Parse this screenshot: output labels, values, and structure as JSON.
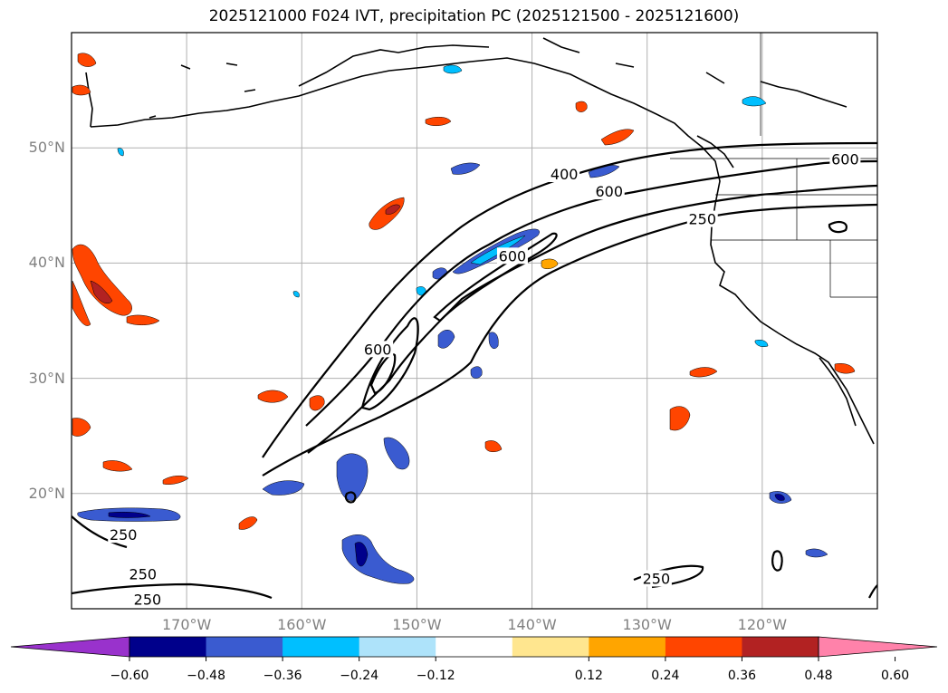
{
  "title": "2025121000 F024 IVT, precipitation PC (2025121500 - 2025121600)",
  "map": {
    "lon_range": [
      -180,
      -110
    ],
    "lat_range": [
      10,
      60
    ],
    "lat_ticks": [
      {
        "value": 50,
        "label": "50°N"
      },
      {
        "value": 40,
        "label": "40°N"
      },
      {
        "value": 30,
        "label": "30°N"
      },
      {
        "value": 20,
        "label": "20°N"
      }
    ],
    "lon_ticks": [
      {
        "value": -170,
        "label": "170°W"
      },
      {
        "value": -160,
        "label": "160°W"
      },
      {
        "value": -150,
        "label": "150°W"
      },
      {
        "value": -140,
        "label": "140°W"
      },
      {
        "value": -130,
        "label": "130°W"
      },
      {
        "value": -120,
        "label": "120°W"
      }
    ],
    "contour_labels": [
      {
        "text": "400",
        "lon": -137.2,
        "lat": 47.5
      },
      {
        "text": "600",
        "lon": -133.3,
        "lat": 46.0
      },
      {
        "text": "250",
        "lon": -125.2,
        "lat": 43.6
      },
      {
        "text": "600",
        "lon": -141.7,
        "lat": 40.4
      },
      {
        "text": "600",
        "lon": -153.4,
        "lat": 32.3
      },
      {
        "text": "600",
        "lon": -112.8,
        "lat": 48.8
      },
      {
        "text": "250",
        "lon": -175.5,
        "lat": 16.2
      },
      {
        "text": "250",
        "lon": -173.8,
        "lat": 12.8
      },
      {
        "text": "250",
        "lon": -173.4,
        "lat": 10.6
      },
      {
        "text": "250",
        "lon": -129.2,
        "lat": 12.4
      }
    ]
  },
  "colorbar": {
    "tick_labels": [
      "−0.60",
      "−0.48",
      "−0.36",
      "−0.24",
      "−0.12",
      "0.12",
      "0.24",
      "0.36",
      "0.48",
      "0.60"
    ],
    "colors": [
      "#9932cc",
      "#00008b",
      "#3a5bd0",
      "#00bfff",
      "#aee3fa",
      "#ffffff",
      "#ffe68f",
      "#ffa500",
      "#ff4500",
      "#b22222",
      "#ff82aa"
    ]
  }
}
